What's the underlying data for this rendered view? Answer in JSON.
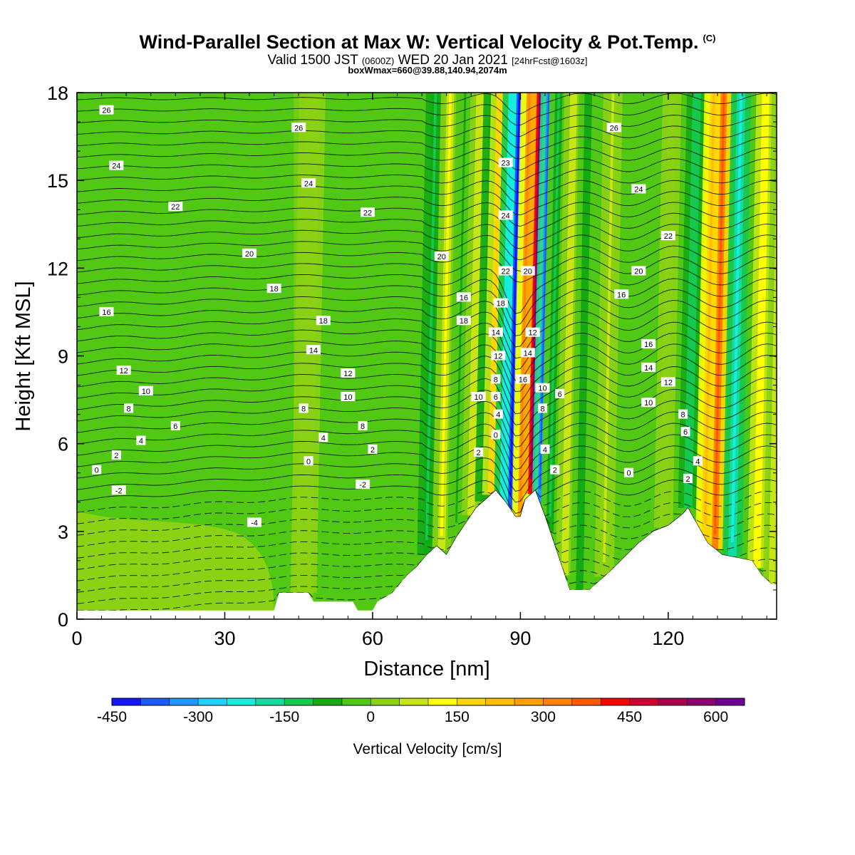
{
  "title": {
    "main": "Wind-Parallel Section at Max W: Vertical Velocity & Pot.Temp.",
    "mark": "(C)",
    "valid_prefix": "Valid 1500 JST",
    "valid_utc": "(0600Z)",
    "valid_date": "WED 20 Jan 2021",
    "fcst": "[24hrFcst@1603z]",
    "boxwmax": "boxWmax=660@39.88,140.94,2074m"
  },
  "chart_data": {
    "type": "heatmap",
    "xlabel": "Distance [nm]",
    "ylabel": "Height [Kft MSL]",
    "xlim": [
      0,
      142
    ],
    "ylim": [
      0,
      18
    ],
    "xticks": [
      0,
      30,
      60,
      90,
      120
    ],
    "yticks": [
      0,
      3,
      6,
      9,
      12,
      15,
      18
    ],
    "colorbar": {
      "label": "Vertical Velocity [cm/s]",
      "range": [
        -450,
        650
      ],
      "ticks": [
        -450,
        -300,
        -150,
        0,
        150,
        300,
        450,
        600
      ],
      "colors": [
        "#1414ff",
        "#1a5cff",
        "#1e96ff",
        "#1ed2ff",
        "#14f0dc",
        "#14dca0",
        "#14c850",
        "#14aa14",
        "#50c814",
        "#8cd214",
        "#c8e614",
        "#ffff00",
        "#ffd700",
        "#ffbe00",
        "#ffa000",
        "#ff8200",
        "#ff5a00",
        "#ff0000",
        "#d20032",
        "#aa0050",
        "#8c0070",
        "#6e0096"
      ]
    },
    "terrain": [
      [
        0,
        0.3
      ],
      [
        40,
        0.3
      ],
      [
        41,
        0.9
      ],
      [
        47,
        0.9
      ],
      [
        48,
        0.6
      ],
      [
        56,
        0.6
      ],
      [
        57,
        0.3
      ],
      [
        60,
        0.3
      ],
      [
        61,
        0.6
      ],
      [
        64,
        0.9
      ],
      [
        67,
        1.5
      ],
      [
        69,
        1.8
      ],
      [
        71,
        2.2
      ],
      [
        73,
        2.5
      ],
      [
        75,
        2.2
      ],
      [
        77,
        2.8
      ],
      [
        79,
        3.3
      ],
      [
        81,
        3.8
      ],
      [
        83,
        4.1
      ],
      [
        85,
        4.4
      ],
      [
        87,
        4.0
      ],
      [
        89,
        3.5
      ],
      [
        90,
        3.5
      ],
      [
        91,
        4.1
      ],
      [
        93,
        4.4
      ],
      [
        95,
        3.5
      ],
      [
        97,
        2.5
      ],
      [
        99,
        1.5
      ],
      [
        100,
        1.0
      ],
      [
        104,
        1.0
      ],
      [
        106,
        1.3
      ],
      [
        108,
        1.6
      ],
      [
        111,
        2.1
      ],
      [
        114,
        2.6
      ],
      [
        117,
        3.0
      ],
      [
        120,
        3.2
      ],
      [
        123,
        3.6
      ],
      [
        124,
        3.8
      ],
      [
        126,
        3.2
      ],
      [
        128,
        2.6
      ],
      [
        131,
        2.2
      ],
      [
        134,
        2.1
      ],
      [
        137,
        2.0
      ],
      [
        139,
        1.5
      ],
      [
        141,
        1.2
      ],
      [
        142,
        1.2
      ]
    ],
    "wbands": [
      {
        "x": 46,
        "w": 3.0,
        "v": 40
      },
      {
        "x": 64,
        "w": 2.5,
        "v": -40
      },
      {
        "x": 71,
        "w": 1.6,
        "v": -120
      },
      {
        "x": 74,
        "w": 1.5,
        "v": 110
      },
      {
        "x": 77,
        "w": 1.3,
        "v": -60
      },
      {
        "x": 80,
        "w": 1.5,
        "v": 80
      },
      {
        "x": 82.5,
        "w": 1.2,
        "v": -120
      },
      {
        "x": 84,
        "w": 1.2,
        "v": 190
      },
      {
        "x": 86.5,
        "w": 1.4,
        "v": -300
      },
      {
        "x": 88,
        "w": 1.1,
        "v": -470
      },
      {
        "x": 90,
        "w": 1.1,
        "v": 330
      },
      {
        "x": 92.2,
        "w": 1.3,
        "v": 560
      },
      {
        "x": 94,
        "w": 1.0,
        "v": -400
      },
      {
        "x": 96,
        "w": 1.5,
        "v": -110
      },
      {
        "x": 99,
        "w": 1.4,
        "v": 90
      },
      {
        "x": 102,
        "w": 1.5,
        "v": -70
      },
      {
        "x": 107,
        "w": 1.6,
        "v": 50
      },
      {
        "x": 111,
        "w": 1.5,
        "v": -40
      },
      {
        "x": 119,
        "w": 1.5,
        "v": 40
      },
      {
        "x": 124,
        "w": 1.7,
        "v": -150
      },
      {
        "x": 127.5,
        "w": 1.6,
        "v": 240
      },
      {
        "x": 129.5,
        "w": 1.3,
        "v": 380
      },
      {
        "x": 133,
        "w": 1.7,
        "v": -250
      },
      {
        "x": 138,
        "w": 1.5,
        "v": 130
      },
      {
        "x": 141,
        "w": 1.2,
        "v": 70
      }
    ],
    "theta_labels": [
      {
        "t": "26",
        "x": 6,
        "y": 17.4
      },
      {
        "t": "24",
        "x": 8,
        "y": 15.5
      },
      {
        "t": "22",
        "x": 20,
        "y": 14.1
      },
      {
        "t": "20",
        "x": 35,
        "y": 12.5
      },
      {
        "t": "18",
        "x": 40,
        "y": 11.3
      },
      {
        "t": "16",
        "x": 6,
        "y": 10.5
      },
      {
        "t": "12",
        "x": 9.5,
        "y": 8.5
      },
      {
        "t": "10",
        "x": 14,
        "y": 7.8
      },
      {
        "t": "8",
        "x": 10.5,
        "y": 7.2
      },
      {
        "t": "6",
        "x": 20,
        "y": 6.6
      },
      {
        "t": "4",
        "x": 13,
        "y": 6.1
      },
      {
        "t": "2",
        "x": 8,
        "y": 5.6
      },
      {
        "t": "0",
        "x": 4,
        "y": 5.1
      },
      {
        "t": "-2",
        "x": 8.5,
        "y": 4.4
      },
      {
        "t": "-4",
        "x": 36,
        "y": 3.3
      },
      {
        "t": "26",
        "x": 45,
        "y": 16.8
      },
      {
        "t": "24",
        "x": 47,
        "y": 14.9
      },
      {
        "t": "22",
        "x": 59,
        "y": 13.9
      },
      {
        "t": "18",
        "x": 50,
        "y": 10.2
      },
      {
        "t": "14",
        "x": 48,
        "y": 9.2
      },
      {
        "t": "12",
        "x": 55,
        "y": 8.4
      },
      {
        "t": "10",
        "x": 55,
        "y": 7.6
      },
      {
        "t": "8",
        "x": 46,
        "y": 7.2
      },
      {
        "t": "8",
        "x": 58,
        "y": 6.6
      },
      {
        "t": "4",
        "x": 50,
        "y": 6.2
      },
      {
        "t": "2",
        "x": 60,
        "y": 5.8
      },
      {
        "t": "0",
        "x": 47,
        "y": 5.4
      },
      {
        "t": "-2",
        "x": 58,
        "y": 4.6
      },
      {
        "t": "20",
        "x": 74,
        "y": 12.4
      },
      {
        "t": "16",
        "x": 78.5,
        "y": 11.0
      },
      {
        "t": "18",
        "x": 78.5,
        "y": 10.2
      },
      {
        "t": "10",
        "x": 81.5,
        "y": 7.6
      },
      {
        "t": "2",
        "x": 81.5,
        "y": 5.7
      },
      {
        "t": "23",
        "x": 87,
        "y": 15.6
      },
      {
        "t": "24",
        "x": 87,
        "y": 13.8
      },
      {
        "t": "22",
        "x": 87,
        "y": 11.9
      },
      {
        "t": "18",
        "x": 86,
        "y": 10.8
      },
      {
        "t": "14",
        "x": 85,
        "y": 9.8
      },
      {
        "t": "12",
        "x": 85.5,
        "y": 9.0
      },
      {
        "t": "8",
        "x": 85,
        "y": 8.2
      },
      {
        "t": "6",
        "x": 85,
        "y": 7.6
      },
      {
        "t": "4",
        "x": 85.5,
        "y": 7.0
      },
      {
        "t": "0",
        "x": 85,
        "y": 6.3
      },
      {
        "t": "20",
        "x": 91.5,
        "y": 11.9
      },
      {
        "t": "12",
        "x": 92.5,
        "y": 9.8
      },
      {
        "t": "14",
        "x": 91.5,
        "y": 9.1
      },
      {
        "t": "16",
        "x": 90.5,
        "y": 8.2
      },
      {
        "t": "10",
        "x": 94.5,
        "y": 7.9
      },
      {
        "t": "8",
        "x": 94.5,
        "y": 7.2
      },
      {
        "t": "6",
        "x": 98,
        "y": 7.7
      },
      {
        "t": "4",
        "x": 95,
        "y": 5.8
      },
      {
        "t": "2",
        "x": 97,
        "y": 5.1
      },
      {
        "t": "26",
        "x": 109,
        "y": 16.8
      },
      {
        "t": "24",
        "x": 114,
        "y": 14.7
      },
      {
        "t": "22",
        "x": 120,
        "y": 13.1
      },
      {
        "t": "20",
        "x": 114,
        "y": 11.9
      },
      {
        "t": "16",
        "x": 110.5,
        "y": 11.1
      },
      {
        "t": "16",
        "x": 116,
        "y": 9.4
      },
      {
        "t": "14",
        "x": 116,
        "y": 8.6
      },
      {
        "t": "12",
        "x": 120,
        "y": 8.1
      },
      {
        "t": "10",
        "x": 116,
        "y": 7.4
      },
      {
        "t": "8",
        "x": 123,
        "y": 7.0
      },
      {
        "t": "6",
        "x": 123.5,
        "y": 6.4
      },
      {
        "t": "4",
        "x": 126,
        "y": 5.4
      },
      {
        "t": "2",
        "x": 124,
        "y": 4.8
      },
      {
        "t": "0",
        "x": 112,
        "y": 5.0
      }
    ]
  }
}
